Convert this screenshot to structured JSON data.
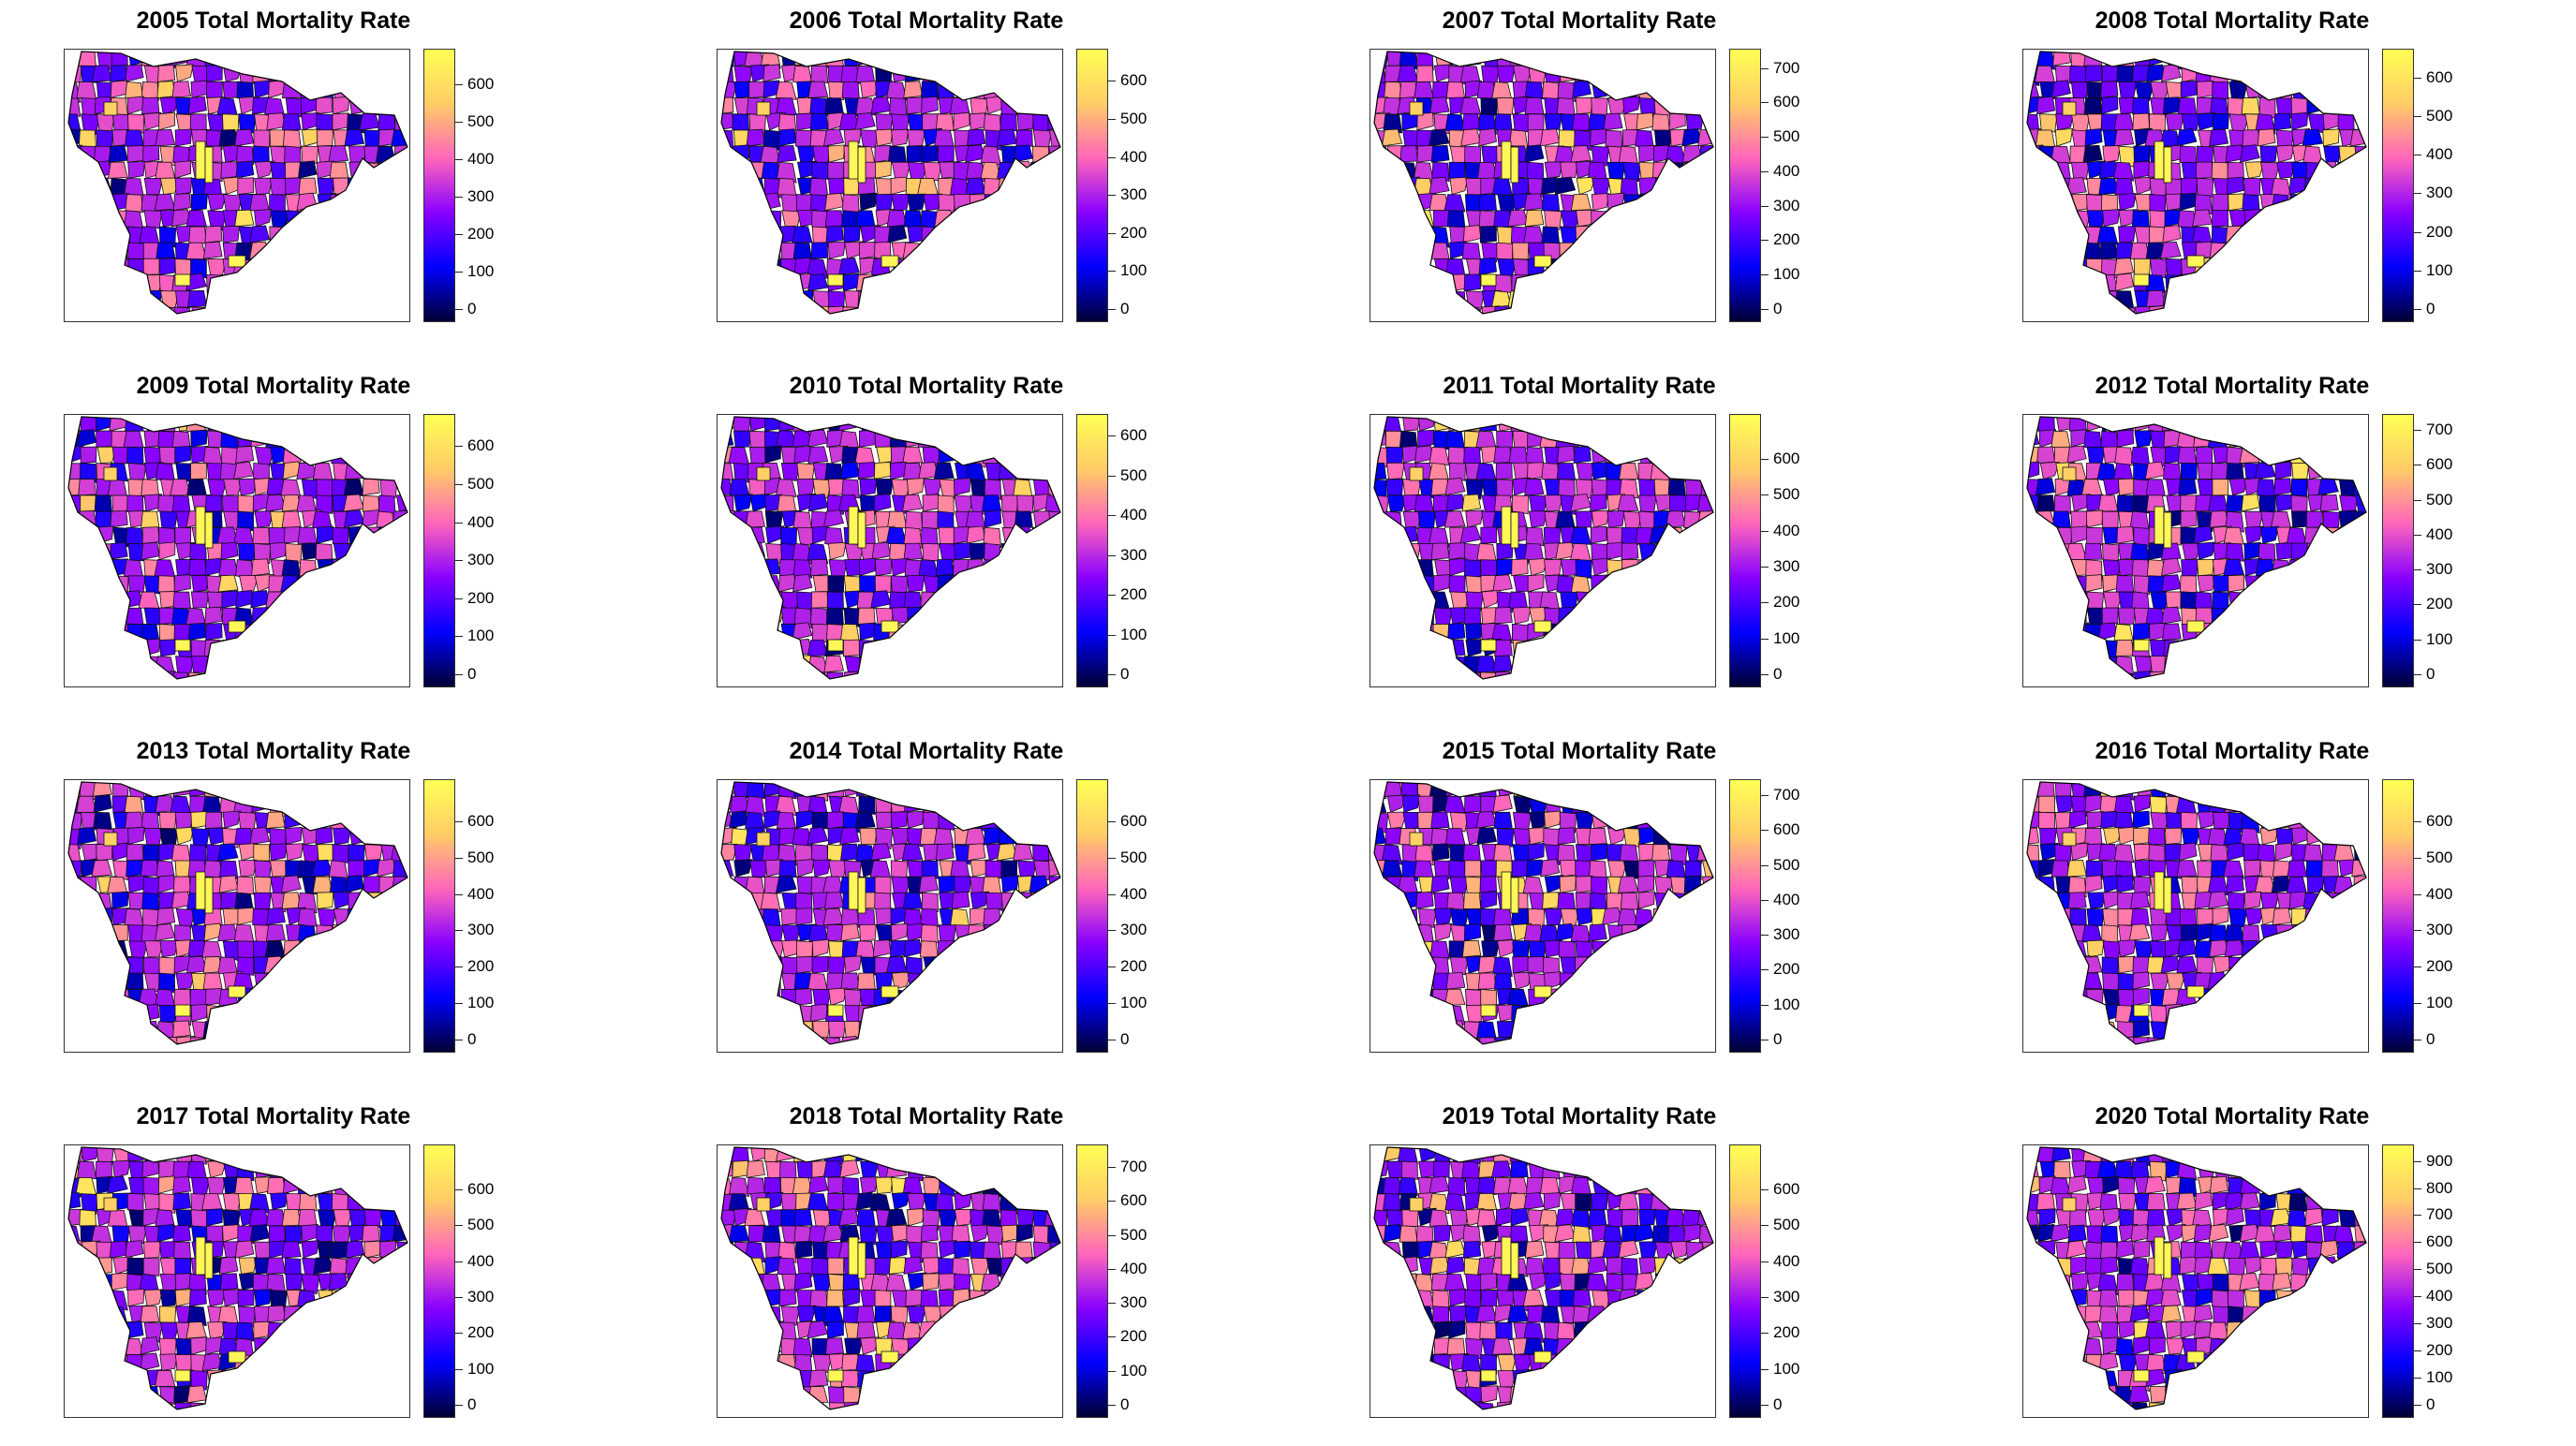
{
  "figure": {
    "panels": [
      {
        "title": "2005 Total Mortality Rate",
        "legend": {
          "max": 680,
          "ticks": [
            0,
            100,
            200,
            300,
            400,
            500,
            600
          ]
        },
        "seed": 11
      },
      {
        "title": "2006 Total Mortality Rate",
        "legend": {
          "max": 670,
          "ticks": [
            0,
            100,
            200,
            300,
            400,
            500,
            600
          ]
        },
        "seed": 23
      },
      {
        "title": "2007 Total Mortality Rate",
        "legend": {
          "max": 740,
          "ticks": [
            0,
            100,
            200,
            300,
            400,
            500,
            600,
            700
          ]
        },
        "seed": 37
      },
      {
        "title": "2008 Total Mortality Rate",
        "legend": {
          "max": 660,
          "ticks": [
            0,
            100,
            200,
            300,
            400,
            500,
            600
          ]
        },
        "seed": 41
      },
      {
        "title": "2009 Total Mortality Rate",
        "legend": {
          "max": 670,
          "ticks": [
            0,
            100,
            200,
            300,
            400,
            500,
            600
          ]
        },
        "seed": 53
      },
      {
        "title": "2010 Total Mortality Rate",
        "legend": {
          "max": 640,
          "ticks": [
            0,
            100,
            200,
            300,
            400,
            500,
            600
          ]
        },
        "seed": 67
      },
      {
        "title": "2011 Total Mortality Rate",
        "legend": {
          "max": 710,
          "ticks": [
            0,
            100,
            200,
            300,
            400,
            500,
            600
          ]
        },
        "seed": 71
      },
      {
        "title": "2012 Total Mortality Rate",
        "legend": {
          "max": 730,
          "ticks": [
            0,
            100,
            200,
            300,
            400,
            500,
            600,
            700
          ]
        },
        "seed": 83
      },
      {
        "title": "2013 Total Mortality Rate",
        "legend": {
          "max": 700,
          "ticks": [
            0,
            100,
            200,
            300,
            400,
            500,
            600
          ]
        },
        "seed": 97
      },
      {
        "title": "2014 Total Mortality Rate",
        "legend": {
          "max": 700,
          "ticks": [
            0,
            100,
            200,
            300,
            400,
            500,
            600
          ]
        },
        "seed": 103
      },
      {
        "title": "2015 Total Mortality Rate",
        "legend": {
          "max": 730,
          "ticks": [
            0,
            100,
            200,
            300,
            400,
            500,
            600,
            700
          ]
        },
        "seed": 113
      },
      {
        "title": "2016 Total Mortality Rate",
        "legend": {
          "max": 700,
          "ticks": [
            0,
            100,
            200,
            300,
            400,
            500,
            600
          ]
        },
        "seed": 127
      },
      {
        "title": "2017 Total Mortality Rate",
        "legend": {
          "max": 710,
          "ticks": [
            0,
            100,
            200,
            300,
            400,
            500,
            600
          ]
        },
        "seed": 131
      },
      {
        "title": "2018 Total Mortality Rate",
        "legend": {
          "max": 750,
          "ticks": [
            0,
            100,
            200,
            300,
            400,
            500,
            600,
            700
          ]
        },
        "seed": 149
      },
      {
        "title": "2019 Total Mortality Rate",
        "legend": {
          "max": 710,
          "ticks": [
            0,
            100,
            200,
            300,
            400,
            500,
            600
          ]
        },
        "seed": 157
      },
      {
        "title": "2020 Total Mortality Rate",
        "legend": {
          "max": 940,
          "ticks": [
            0,
            100,
            200,
            300,
            400,
            500,
            600,
            700,
            800,
            900
          ]
        },
        "seed": 163
      }
    ],
    "colormap": [
      "#000033",
      "#0000ff",
      "#8800ff",
      "#ff66bb",
      "#ffcc66",
      "#ffff55"
    ]
  }
}
